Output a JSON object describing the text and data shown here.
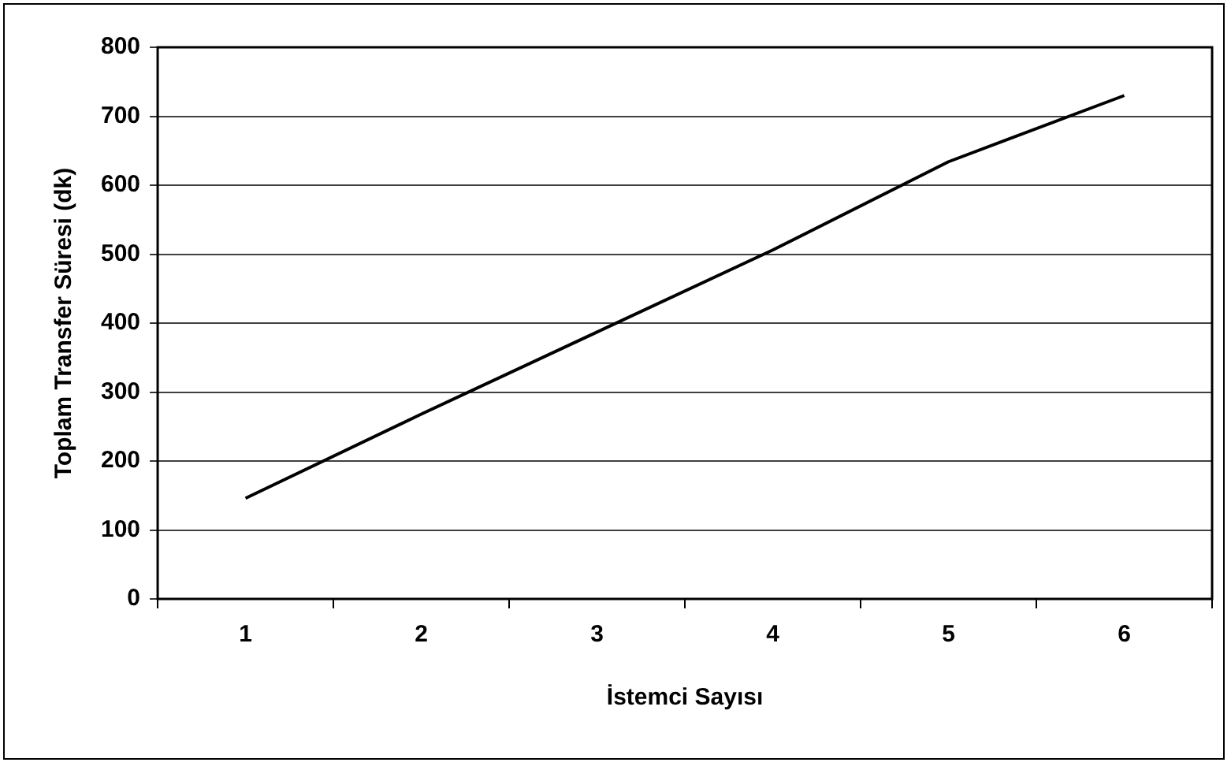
{
  "chart_data": {
    "type": "line",
    "xlabel": "İstemci Sayısı",
    "ylabel": "Toplam Transfer Süresi (dk)",
    "categories": [
      "1",
      "2",
      "3",
      "4",
      "5",
      "6"
    ],
    "series": [
      {
        "color": "#000000",
        "values": [
          146,
          268,
          387,
          506,
          634,
          730
        ]
      }
    ],
    "ylim": [
      0,
      800
    ],
    "yticks": [
      0,
      100,
      200,
      300,
      400,
      500,
      600,
      700,
      800
    ],
    "grid": "y",
    "legend": false,
    "marker": "none",
    "line_style": "solid"
  }
}
